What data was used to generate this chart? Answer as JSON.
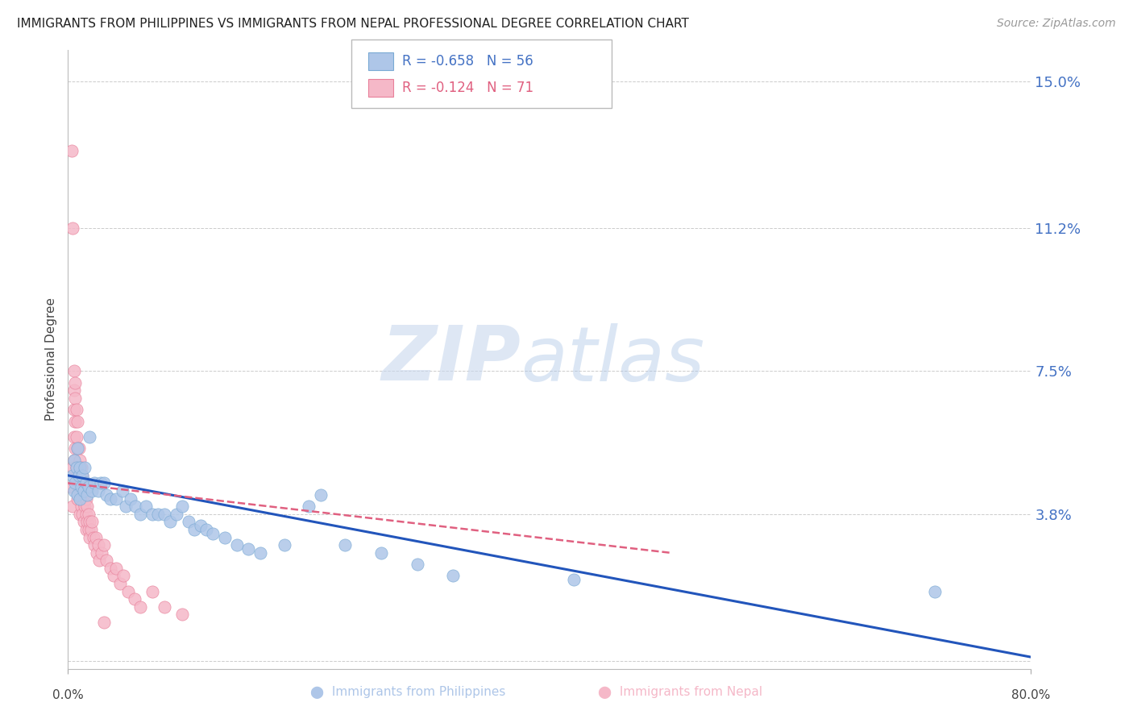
{
  "title": "IMMIGRANTS FROM PHILIPPINES VS IMMIGRANTS FROM NEPAL PROFESSIONAL DEGREE CORRELATION CHART",
  "source": "Source: ZipAtlas.com",
  "ylabel": "Professional Degree",
  "y_ticks": [
    0.0,
    0.038,
    0.075,
    0.112,
    0.15
  ],
  "y_tick_labels": [
    "",
    "3.8%",
    "7.5%",
    "11.2%",
    "15.0%"
  ],
  "xlim": [
    0.0,
    0.8
  ],
  "ylim": [
    -0.002,
    0.158
  ],
  "watermark_zip": "ZIP",
  "watermark_atlas": "atlas",
  "philippines_color": "#aec6e8",
  "philippines_edge": "#7aaad4",
  "nepal_color": "#f5b8c8",
  "nepal_edge": "#e8809a",
  "trendline_philippines_color": "#2255bb",
  "trendline_nepal_color": "#e06080",
  "philippines_R": -0.658,
  "philippines_N": 56,
  "nepal_R": -0.124,
  "nepal_N": 71,
  "philippines_x": [
    0.004,
    0.005,
    0.005,
    0.006,
    0.007,
    0.008,
    0.008,
    0.009,
    0.01,
    0.01,
    0.011,
    0.012,
    0.013,
    0.014,
    0.015,
    0.016,
    0.017,
    0.018,
    0.02,
    0.022,
    0.025,
    0.027,
    0.03,
    0.032,
    0.035,
    0.04,
    0.045,
    0.048,
    0.052,
    0.056,
    0.06,
    0.065,
    0.07,
    0.075,
    0.08,
    0.085,
    0.09,
    0.095,
    0.1,
    0.105,
    0.11,
    0.115,
    0.12,
    0.13,
    0.14,
    0.15,
    0.16,
    0.18,
    0.2,
    0.21,
    0.23,
    0.26,
    0.29,
    0.32,
    0.42,
    0.72
  ],
  "philippines_y": [
    0.048,
    0.044,
    0.052,
    0.046,
    0.05,
    0.055,
    0.043,
    0.048,
    0.042,
    0.05,
    0.045,
    0.048,
    0.044,
    0.05,
    0.046,
    0.043,
    0.045,
    0.058,
    0.044,
    0.046,
    0.044,
    0.046,
    0.046,
    0.043,
    0.042,
    0.042,
    0.044,
    0.04,
    0.042,
    0.04,
    0.038,
    0.04,
    0.038,
    0.038,
    0.038,
    0.036,
    0.038,
    0.04,
    0.036,
    0.034,
    0.035,
    0.034,
    0.033,
    0.032,
    0.03,
    0.029,
    0.028,
    0.03,
    0.04,
    0.043,
    0.03,
    0.028,
    0.025,
    0.022,
    0.021,
    0.018
  ],
  "nepal_x": [
    0.003,
    0.003,
    0.004,
    0.004,
    0.004,
    0.005,
    0.005,
    0.005,
    0.005,
    0.005,
    0.006,
    0.006,
    0.006,
    0.006,
    0.007,
    0.007,
    0.007,
    0.008,
    0.008,
    0.008,
    0.008,
    0.009,
    0.009,
    0.009,
    0.01,
    0.01,
    0.01,
    0.01,
    0.011,
    0.011,
    0.011,
    0.012,
    0.012,
    0.012,
    0.013,
    0.013,
    0.013,
    0.014,
    0.014,
    0.015,
    0.015,
    0.015,
    0.016,
    0.016,
    0.017,
    0.017,
    0.018,
    0.018,
    0.019,
    0.02,
    0.021,
    0.022,
    0.023,
    0.024,
    0.025,
    0.026,
    0.028,
    0.03,
    0.032,
    0.035,
    0.038,
    0.04,
    0.043,
    0.046,
    0.05,
    0.055,
    0.06,
    0.07,
    0.08,
    0.095,
    0.03
  ],
  "nepal_y": [
    0.132,
    0.045,
    0.112,
    0.05,
    0.04,
    0.075,
    0.07,
    0.065,
    0.058,
    0.052,
    0.072,
    0.068,
    0.062,
    0.055,
    0.065,
    0.058,
    0.05,
    0.062,
    0.055,
    0.048,
    0.042,
    0.055,
    0.05,
    0.044,
    0.052,
    0.048,
    0.043,
    0.038,
    0.05,
    0.046,
    0.04,
    0.048,
    0.044,
    0.038,
    0.045,
    0.041,
    0.036,
    0.044,
    0.04,
    0.042,
    0.038,
    0.034,
    0.04,
    0.036,
    0.038,
    0.034,
    0.036,
    0.032,
    0.034,
    0.036,
    0.032,
    0.03,
    0.032,
    0.028,
    0.03,
    0.026,
    0.028,
    0.03,
    0.026,
    0.024,
    0.022,
    0.024,
    0.02,
    0.022,
    0.018,
    0.016,
    0.014,
    0.018,
    0.014,
    0.012,
    0.01
  ],
  "trendline_phil_x0": 0.0,
  "trendline_phil_y0": 0.048,
  "trendline_phil_x1": 0.8,
  "trendline_phil_y1": 0.001,
  "trendline_nepal_x0": 0.0,
  "trendline_nepal_y0": 0.046,
  "trendline_nepal_x1": 0.5,
  "trendline_nepal_y1": 0.028
}
